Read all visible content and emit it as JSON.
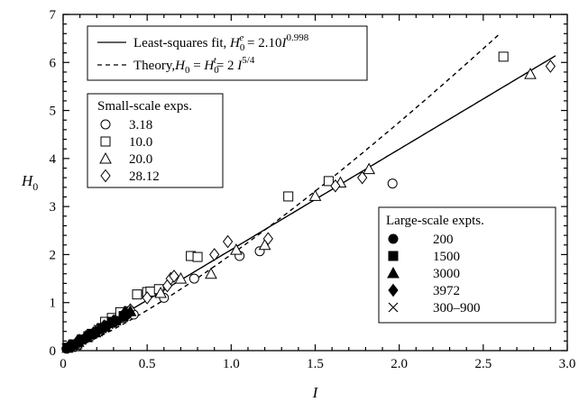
{
  "chart_data": {
    "type": "scatter",
    "title": "",
    "xlabel": "I",
    "ylabel": "H",
    "ylabel_sub": "0",
    "xlim": [
      0,
      3.0
    ],
    "ylim": [
      0,
      7
    ],
    "x_ticks": [
      "0",
      "0.5",
      "1.0",
      "1.5",
      "2.0",
      "2.5",
      "3.0"
    ],
    "x_tick_values": [
      0,
      0.5,
      1.0,
      1.5,
      2.0,
      2.5,
      3.0
    ],
    "y_ticks": [
      "0",
      "1",
      "2",
      "3",
      "4",
      "5",
      "6",
      "7"
    ],
    "y_tick_values": [
      0,
      1,
      2,
      3,
      4,
      5,
      6,
      7
    ],
    "grid": false,
    "lines": [
      {
        "name": "Least-squares fit",
        "label_parts": [
          "Least-squares fit, ",
          "H",
          "0",
          "e",
          " = 2.10",
          "I",
          "0.998"
        ],
        "style": "solid",
        "coef": 2.1,
        "exponent": 0.998,
        "x_range": [
          0,
          2.93
        ]
      },
      {
        "name": "Theory",
        "label_parts": [
          "Theory,",
          "H",
          "0",
          " = ",
          "H",
          "0",
          "t",
          "= 2 ",
          "I",
          "5/4"
        ],
        "style": "dashed",
        "coef": 2.0,
        "exponent": 1.25,
        "x_range": [
          0,
          2.6
        ]
      }
    ],
    "legend_small": {
      "title": "Small-scale exps.",
      "entries": [
        {
          "label": "3.18",
          "marker": "circle-open"
        },
        {
          "label": "10.0",
          "marker": "square-open"
        },
        {
          "label": "20.0",
          "marker": "triangle-open"
        },
        {
          "label": "28.12",
          "marker": "diamond-open"
        }
      ]
    },
    "legend_large": {
      "title": "Large-scale expts.",
      "entries": [
        {
          "label": "200",
          "marker": "circle-filled"
        },
        {
          "label": "1500",
          "marker": "square-filled"
        },
        {
          "label": "3000",
          "marker": "triangle-filled"
        },
        {
          "label": "3972",
          "marker": "diamond-filled"
        },
        {
          "label": "300–900",
          "marker": "cross"
        }
      ]
    },
    "series": [
      {
        "name": "3.18",
        "marker": "circle-open",
        "points": [
          [
            0.05,
            0.1
          ],
          [
            0.1,
            0.2
          ],
          [
            0.15,
            0.3
          ],
          [
            0.22,
            0.42
          ],
          [
            0.3,
            0.58
          ],
          [
            0.35,
            0.68
          ],
          [
            0.42,
            0.75
          ],
          [
            0.6,
            1.1
          ],
          [
            0.78,
            1.5
          ],
          [
            1.05,
            1.97
          ],
          [
            1.17,
            2.07
          ],
          [
            1.96,
            3.48
          ]
        ]
      },
      {
        "name": "10.0",
        "marker": "square-open",
        "points": [
          [
            0.05,
            0.08
          ],
          [
            0.08,
            0.12
          ],
          [
            0.15,
            0.3
          ],
          [
            0.25,
            0.6
          ],
          [
            0.29,
            0.68
          ],
          [
            0.34,
            0.8
          ],
          [
            0.39,
            0.82
          ],
          [
            0.44,
            1.17
          ],
          [
            0.5,
            1.22
          ],
          [
            0.52,
            1.23
          ],
          [
            0.57,
            1.28
          ],
          [
            0.76,
            1.97
          ],
          [
            0.8,
            1.95
          ],
          [
            1.34,
            3.21
          ],
          [
            1.58,
            3.53
          ],
          [
            2.62,
            6.12
          ]
        ]
      },
      {
        "name": "20.0",
        "marker": "triangle-open",
        "points": [
          [
            0.08,
            0.15
          ],
          [
            0.2,
            0.4
          ],
          [
            0.35,
            0.7
          ],
          [
            0.58,
            1.2
          ],
          [
            0.7,
            1.5
          ],
          [
            0.88,
            1.6
          ],
          [
            1.03,
            2.1
          ],
          [
            1.2,
            2.2
          ],
          [
            1.5,
            3.22
          ],
          [
            1.65,
            3.5
          ],
          [
            1.82,
            3.78
          ],
          [
            2.78,
            5.76
          ]
        ]
      },
      {
        "name": "28.12",
        "marker": "diamond-open",
        "points": [
          [
            0.1,
            0.2
          ],
          [
            0.2,
            0.42
          ],
          [
            0.4,
            0.85
          ],
          [
            0.5,
            1.1
          ],
          [
            0.62,
            1.35
          ],
          [
            0.64,
            1.5
          ],
          [
            0.66,
            1.55
          ],
          [
            0.9,
            2.0
          ],
          [
            0.98,
            2.27
          ],
          [
            1.22,
            2.33
          ],
          [
            1.62,
            3.43
          ],
          [
            1.78,
            3.6
          ],
          [
            2.9,
            5.92
          ]
        ]
      },
      {
        "name": "200",
        "marker": "circle-filled",
        "points": [
          [
            0.02,
            0.04
          ],
          [
            0.05,
            0.1
          ],
          [
            0.1,
            0.2
          ],
          [
            0.15,
            0.3
          ],
          [
            0.2,
            0.4
          ],
          [
            0.26,
            0.52
          ],
          [
            0.32,
            0.62
          ],
          [
            0.38,
            0.75
          ]
        ]
      },
      {
        "name": "1500",
        "marker": "square-filled",
        "points": [
          [
            0.03,
            0.06
          ],
          [
            0.06,
            0.13
          ],
          [
            0.11,
            0.23
          ],
          [
            0.17,
            0.35
          ],
          [
            0.23,
            0.47
          ],
          [
            0.29,
            0.6
          ],
          [
            0.36,
            0.72
          ]
        ]
      },
      {
        "name": "3000",
        "marker": "triangle-filled",
        "points": [
          [
            0.04,
            0.08
          ],
          [
            0.09,
            0.18
          ],
          [
            0.14,
            0.28
          ],
          [
            0.19,
            0.38
          ],
          [
            0.25,
            0.5
          ],
          [
            0.31,
            0.63
          ],
          [
            0.4,
            0.82
          ]
        ]
      },
      {
        "name": "3972",
        "marker": "diamond-filled",
        "points": [
          [
            0.03,
            0.07
          ],
          [
            0.08,
            0.17
          ],
          [
            0.13,
            0.27
          ],
          [
            0.18,
            0.37
          ],
          [
            0.24,
            0.5
          ],
          [
            0.3,
            0.62
          ],
          [
            0.37,
            0.8
          ]
        ]
      },
      {
        "name": "300–900",
        "marker": "cross",
        "points": [
          [
            0.02,
            0.05
          ],
          [
            0.07,
            0.14
          ],
          [
            0.12,
            0.25
          ],
          [
            0.16,
            0.33
          ],
          [
            0.21,
            0.44
          ],
          [
            0.27,
            0.55
          ]
        ]
      }
    ]
  }
}
